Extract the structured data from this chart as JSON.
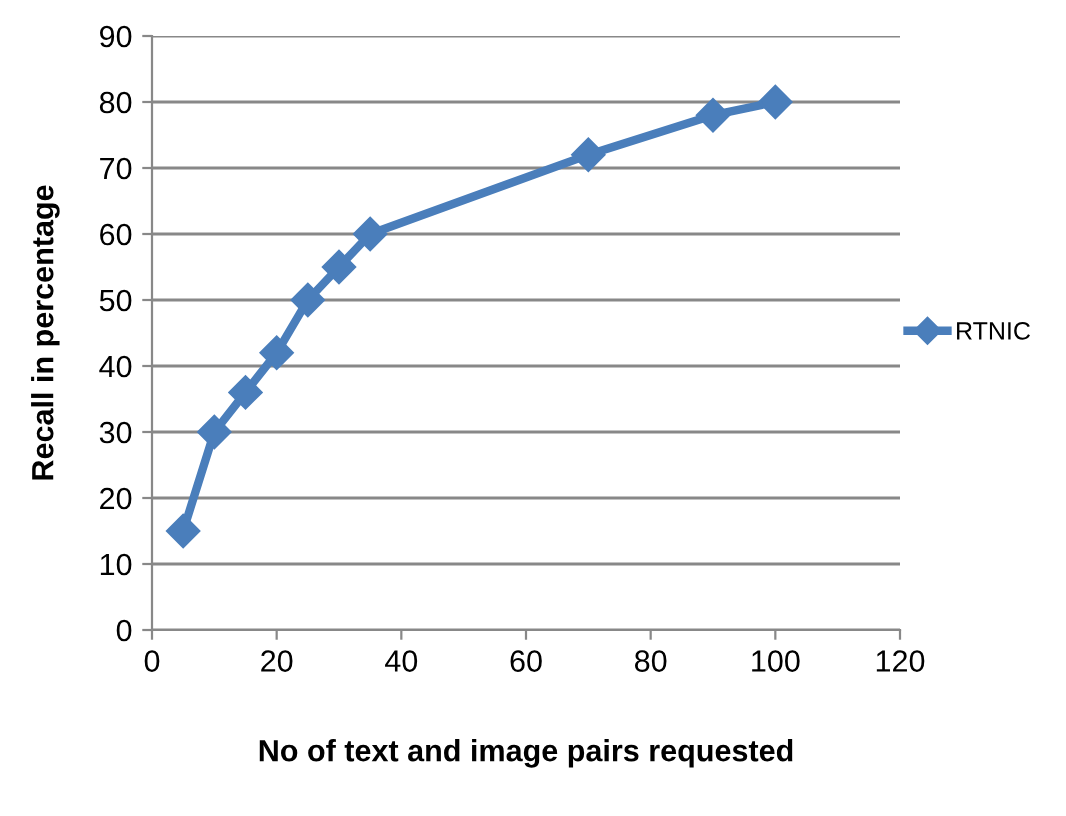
{
  "chart_data": {
    "type": "line",
    "xlabel": "No of text and image pairs requested",
    "ylabel": "Recall in percentage",
    "series": [
      {
        "name": "RTNIC",
        "color": "#4a7ebb",
        "x": [
          5,
          10,
          15,
          20,
          25,
          30,
          35,
          70,
          90,
          100
        ],
        "values": [
          15,
          30,
          36,
          42,
          50,
          55,
          60,
          72,
          78,
          80
        ]
      }
    ],
    "xlim": [
      0,
      120
    ],
    "xticks": [
      0,
      20,
      40,
      60,
      80,
      100,
      120
    ],
    "ylim": [
      0,
      90
    ],
    "yticks": [
      0,
      10,
      20,
      30,
      40,
      50,
      60,
      70,
      80,
      90
    ],
    "grid": "y",
    "legend": "right",
    "marker": "diamond",
    "line_style": "solid"
  }
}
